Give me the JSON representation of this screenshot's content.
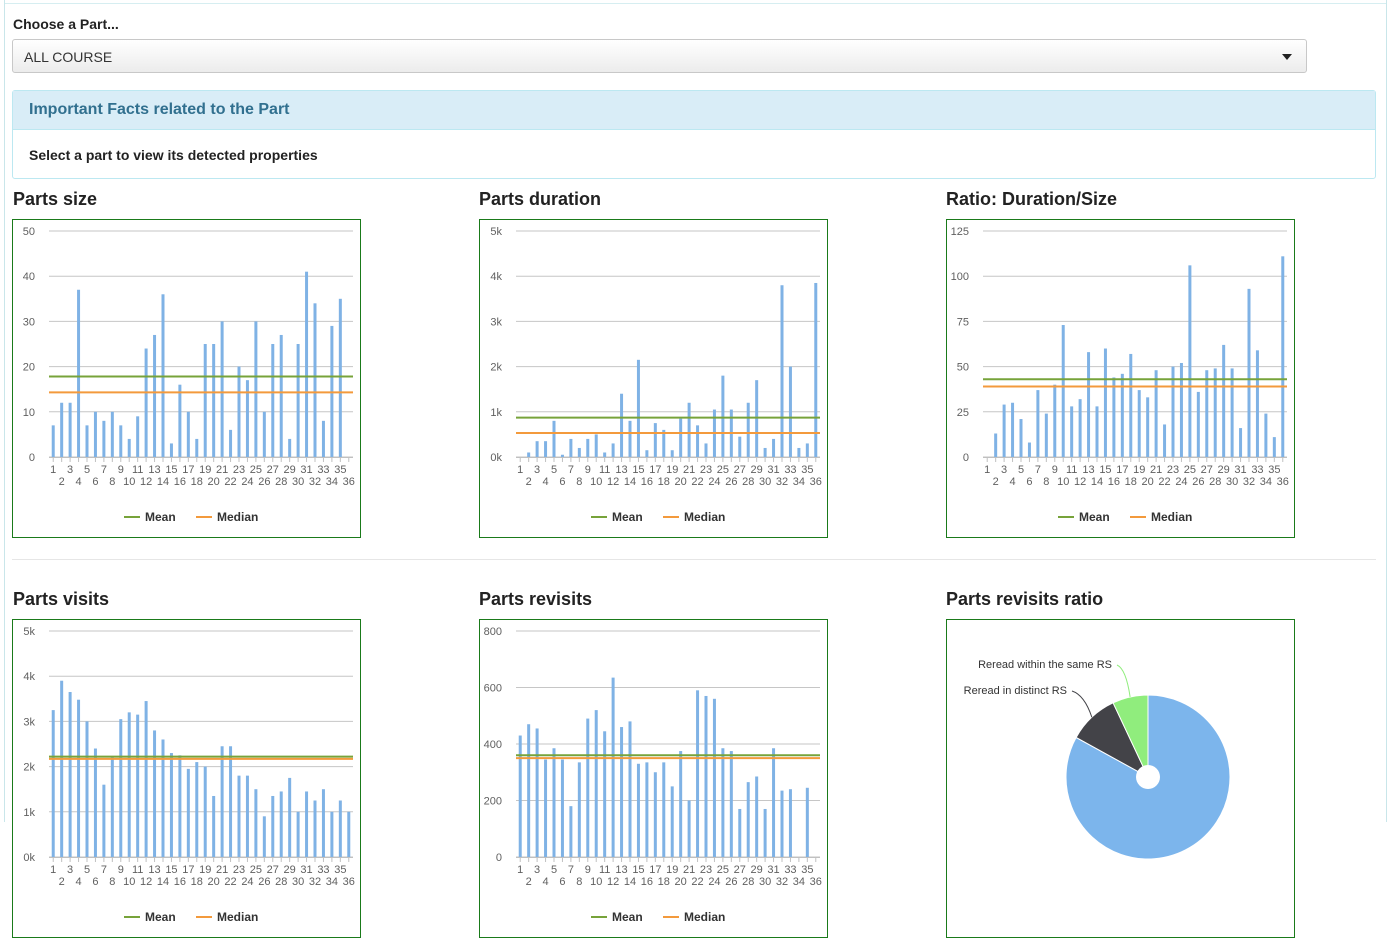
{
  "selector": {
    "label": "Choose a Part...",
    "value": "ALL COURSE"
  },
  "facts": {
    "title": "Important Facts related to the Part",
    "body": "Select a part to view its detected properties"
  },
  "colors": {
    "bar": "#7fb2e5",
    "mean": "#77a33a",
    "median": "#f39a3c",
    "grid": "#c6c6c6",
    "border": "#1a7a1a",
    "pie_main": "#7cb5ec",
    "pie_dark": "#434348",
    "pie_green": "#90ed7d"
  },
  "legend": {
    "mean": "Mean",
    "median": "Median"
  },
  "chart_data": [
    {
      "type": "bar",
      "title": "Parts size",
      "categories": [
        "1",
        "2",
        "3",
        "4",
        "5",
        "6",
        "7",
        "8",
        "9",
        "10",
        "11",
        "12",
        "13",
        "14",
        "15",
        "16",
        "17",
        "18",
        "19",
        "20",
        "21",
        "22",
        "23",
        "24",
        "25",
        "26",
        "27",
        "28",
        "29",
        "30",
        "31",
        "32",
        "33",
        "34",
        "35",
        "36"
      ],
      "values": [
        7,
        12,
        12,
        37,
        7,
        10,
        8,
        10,
        7,
        4,
        9,
        24,
        27,
        36,
        3,
        16,
        10,
        4,
        25,
        25,
        30,
        6,
        20,
        17,
        30,
        10,
        25,
        27,
        4,
        25,
        41,
        34,
        8,
        29,
        35,
        0
      ],
      "mean": 17.8,
      "median": 14.3,
      "ylim": [
        0,
        50
      ],
      "yticks": [
        "0",
        "10",
        "20",
        "30",
        "40",
        "50"
      ],
      "grid": true,
      "legend_position": "bottom"
    },
    {
      "type": "bar",
      "title": "Parts duration",
      "categories": [
        "1",
        "2",
        "3",
        "4",
        "5",
        "6",
        "7",
        "8",
        "9",
        "10",
        "11",
        "12",
        "13",
        "14",
        "15",
        "16",
        "17",
        "18",
        "19",
        "20",
        "21",
        "22",
        "23",
        "24",
        "25",
        "26",
        "27",
        "28",
        "29",
        "30",
        "31",
        "32",
        "33",
        "34",
        "35",
        "36"
      ],
      "values": [
        0,
        100,
        350,
        350,
        800,
        50,
        400,
        200,
        400,
        500,
        100,
        300,
        1400,
        800,
        2150,
        150,
        750,
        600,
        150,
        850,
        1200,
        700,
        300,
        1050,
        1800,
        1050,
        450,
        1200,
        1700,
        200,
        400,
        3800,
        2000,
        200,
        300,
        3850
      ],
      "mean": 870,
      "median": 530,
      "ylim": [
        0,
        5000
      ],
      "yticks": [
        "0k",
        "1k",
        "2k",
        "3k",
        "4k",
        "5k"
      ],
      "grid": true,
      "legend_position": "bottom"
    },
    {
      "type": "bar",
      "title": "Ratio: Duration/Size",
      "categories": [
        "1",
        "2",
        "3",
        "4",
        "5",
        "6",
        "7",
        "8",
        "9",
        "10",
        "11",
        "12",
        "13",
        "14",
        "15",
        "16",
        "17",
        "18",
        "19",
        "20",
        "21",
        "22",
        "23",
        "24",
        "25",
        "26",
        "27",
        "28",
        "29",
        "30",
        "31",
        "32",
        "33",
        "34",
        "35",
        "36"
      ],
      "values": [
        0,
        13,
        29,
        30,
        21,
        8,
        37,
        24,
        40,
        73,
        28,
        32,
        58,
        28,
        60,
        44,
        46,
        57,
        37,
        33,
        48,
        18,
        50,
        52,
        106,
        36,
        48,
        49,
        62,
        49,
        16,
        93,
        59,
        24,
        11,
        111
      ],
      "mean": 43,
      "median": 39,
      "ylim": [
        0,
        125
      ],
      "yticks": [
        "0",
        "25",
        "50",
        "75",
        "100",
        "125"
      ],
      "grid": true,
      "legend_position": "bottom"
    },
    {
      "type": "bar",
      "title": "Parts visits",
      "categories": [
        "1",
        "2",
        "3",
        "4",
        "5",
        "6",
        "7",
        "8",
        "9",
        "10",
        "11",
        "12",
        "13",
        "14",
        "15",
        "16",
        "17",
        "18",
        "19",
        "20",
        "21",
        "22",
        "23",
        "24",
        "25",
        "26",
        "27",
        "28",
        "29",
        "30",
        "31",
        "32",
        "33",
        "34",
        "35",
        "36"
      ],
      "values": [
        3250,
        3900,
        3650,
        3480,
        3000,
        2400,
        1600,
        2200,
        3050,
        3200,
        3150,
        3450,
        2800,
        2600,
        2300,
        2250,
        1950,
        2100,
        2000,
        1350,
        2450,
        2450,
        1800,
        1800,
        1500,
        900,
        1350,
        1450,
        1750,
        1000,
        1450,
        1250,
        1500,
        1000,
        1250,
        1000
      ],
      "mean": 2220,
      "median": 2170,
      "ylim": [
        0,
        5000
      ],
      "yticks": [
        "0k",
        "1k",
        "2k",
        "3k",
        "4k",
        "5k"
      ],
      "grid": true,
      "legend_position": "bottom"
    },
    {
      "type": "bar",
      "title": "Parts revisits",
      "categories": [
        "1",
        "2",
        "3",
        "4",
        "5",
        "6",
        "7",
        "8",
        "9",
        "10",
        "11",
        "12",
        "13",
        "14",
        "15",
        "16",
        "17",
        "18",
        "19",
        "20",
        "21",
        "22",
        "23",
        "24",
        "25",
        "26",
        "27",
        "28",
        "29",
        "30",
        "31",
        "32",
        "33",
        "34",
        "35",
        "36"
      ],
      "values": [
        430,
        470,
        455,
        345,
        385,
        345,
        180,
        335,
        490,
        520,
        445,
        635,
        460,
        480,
        330,
        335,
        300,
        335,
        250,
        375,
        200,
        590,
        570,
        560,
        385,
        375,
        170,
        265,
        285,
        170,
        385,
        235,
        240,
        0,
        245,
        0
      ],
      "mean": 360,
      "median": 350,
      "ylim": [
        0,
        800
      ],
      "yticks": [
        "0",
        "200",
        "400",
        "600",
        "800"
      ],
      "grid": true,
      "legend_position": "bottom"
    },
    {
      "type": "pie",
      "title": "Parts revisits ratio",
      "slices": [
        {
          "label": "",
          "value": 83
        },
        {
          "label": "Reread in distinct RS",
          "value": 10
        },
        {
          "label": "Reread within the same RS",
          "value": 7
        }
      ]
    }
  ]
}
